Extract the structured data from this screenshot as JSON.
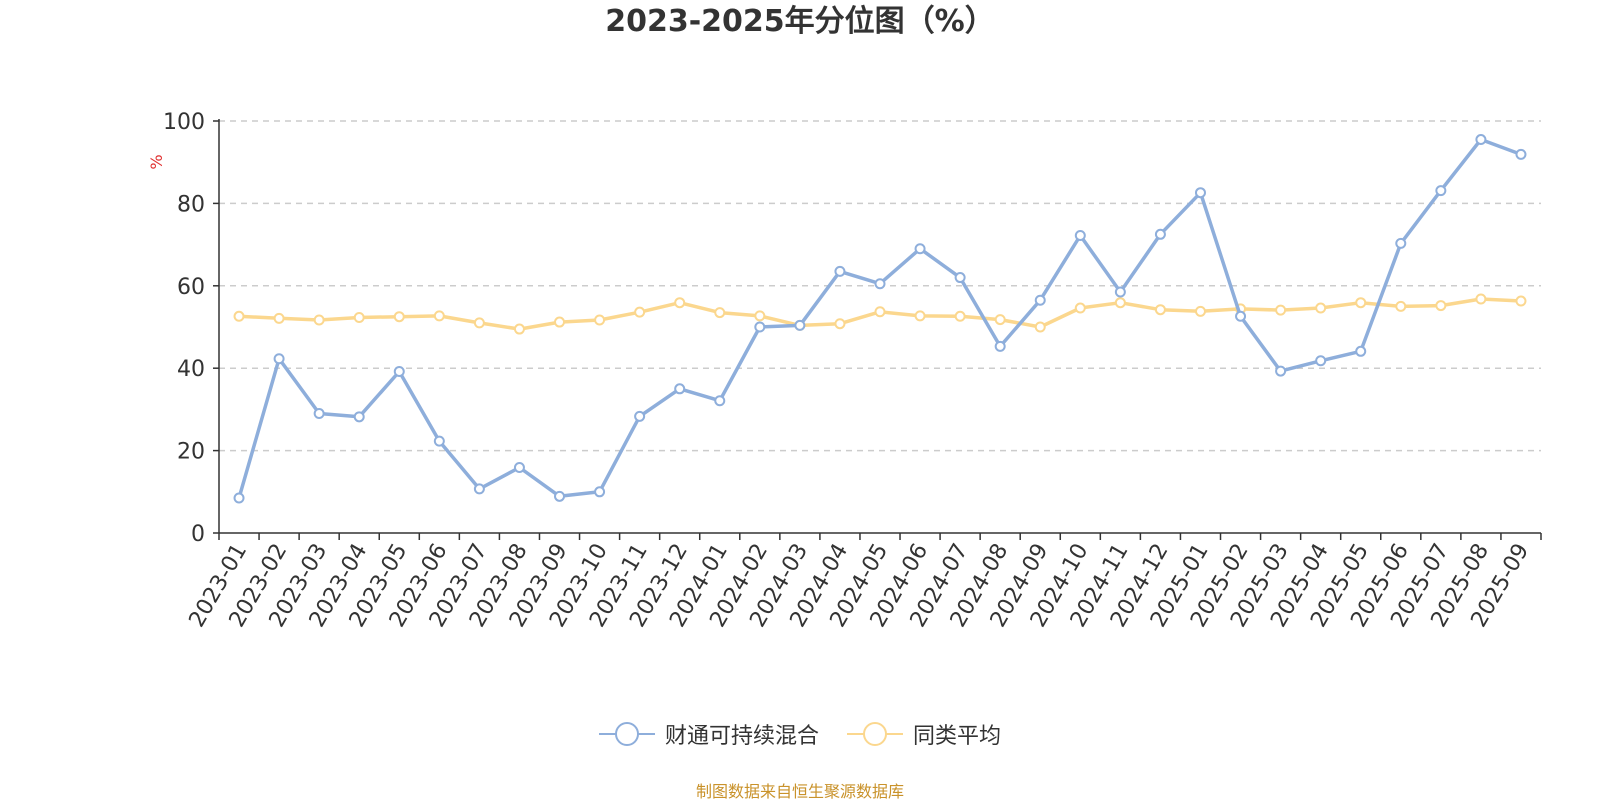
{
  "chart_data": {
    "type": "line",
    "title": "2023-2025年分位图（%）",
    "ylabel": "%",
    "xlabel": "",
    "ylim": [
      0,
      100
    ],
    "yticks": [
      0,
      20,
      40,
      60,
      80,
      100
    ],
    "grid": "horizontal-dashed",
    "legend_position": "bottom",
    "categories": [
      "2023-01",
      "2023-02",
      "2023-03",
      "2023-04",
      "2023-05",
      "2023-06",
      "2023-07",
      "2023-08",
      "2023-09",
      "2023-10",
      "2023-11",
      "2023-12",
      "2024-01",
      "2024-02",
      "2024-03",
      "2024-04",
      "2024-05",
      "2024-06",
      "2024-07",
      "2024-08",
      "2024-09",
      "2024-10",
      "2024-11",
      "2024-12",
      "2025-01",
      "2025-02",
      "2025-03",
      "2025-04",
      "2025-05",
      "2025-06",
      "2025-07",
      "2025-08",
      "2025-09"
    ],
    "series": [
      {
        "name": "财通可持续混合",
        "color": "#8eaedb",
        "values": [
          8.5,
          42.3,
          29.0,
          28.2,
          39.2,
          22.3,
          10.7,
          15.9,
          8.9,
          10.0,
          28.3,
          35.0,
          32.1,
          50.0,
          50.4,
          63.5,
          60.5,
          69.0,
          62.0,
          45.3,
          56.5,
          72.2,
          58.5,
          72.5,
          82.6,
          52.6,
          39.3,
          41.8,
          44.1,
          70.3,
          83.1,
          95.5,
          91.9
        ]
      },
      {
        "name": "同类平均",
        "color": "#fbd78e",
        "values": [
          52.6,
          52.1,
          51.7,
          52.3,
          52.5,
          52.7,
          51.0,
          49.5,
          51.2,
          51.7,
          53.6,
          55.9,
          53.5,
          52.7,
          50.4,
          50.8,
          53.7,
          52.7,
          52.6,
          51.8,
          50.0,
          54.6,
          55.9,
          54.2,
          53.8,
          54.4,
          54.1,
          54.6,
          55.9,
          55.0,
          55.2,
          56.8,
          56.3
        ]
      }
    ]
  },
  "source_note": "制图数据来自恒生聚源数据库"
}
